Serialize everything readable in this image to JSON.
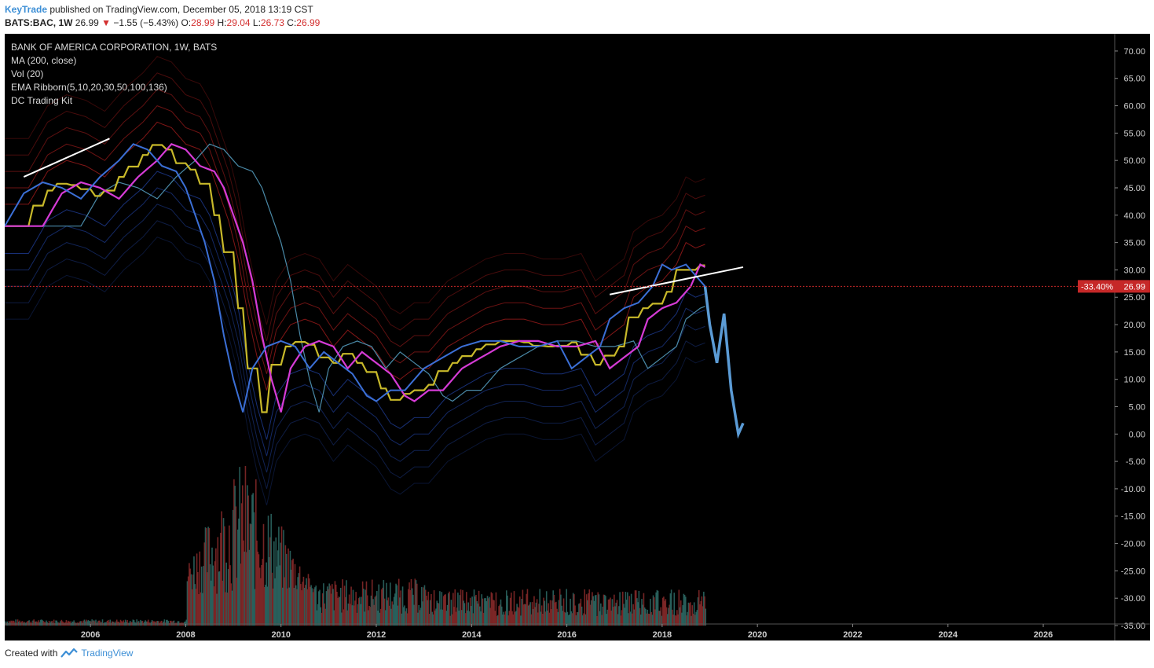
{
  "header": {
    "author": "KeyTrade",
    "published": "published on TradingView.com, December 05, 2018 13:19 CST",
    "symbol": "BATS:BAC, 1W",
    "last": "26.99",
    "change_arrow": "▼",
    "change": "−1.55 (−5.43%)",
    "open_label": "O:",
    "open": "28.99",
    "high_label": "H:",
    "high": "29.04",
    "low_label": "L:",
    "low": "26.73",
    "close_label": "C:",
    "close": "26.99"
  },
  "legend": {
    "title": "BANK OF AMERICA CORPORATION, 1W, BATS",
    "ma": "MA (200, close)",
    "vol": "Vol (20)",
    "ema": "EMA Ribborn(5,10,20,30,50,100,136)",
    "dc": "DC Trading Kit"
  },
  "price_tag": {
    "pct": "-33.40%",
    "price": "26.99"
  },
  "footer": {
    "created_with": "Created with",
    "brand": "TradingView",
    "logo_icon": "tradingview-logo-icon"
  },
  "colors": {
    "background": "#000000",
    "price_line": "#3b6fd6",
    "yellow": "#c8b92a",
    "magenta": "#d63bd6",
    "projection": "#5b9bd5",
    "trendline": "#ffffff",
    "price_tag": "#c62828"
  },
  "chart_data": {
    "type": "line",
    "title": "BANK OF AMERICA CORPORATION, 1W, BATS",
    "xlabel": "",
    "ylabel": "",
    "x_ticks": [
      "2006",
      "2008",
      "2010",
      "2012",
      "2014",
      "2016",
      "2018",
      "2020",
      "2022",
      "2024",
      "2026"
    ],
    "y_ticks": [
      "70.00",
      "65.00",
      "60.00",
      "55.00",
      "50.00",
      "45.00",
      "40.00",
      "35.00",
      "30.00",
      "25.00",
      "20.00",
      "15.00",
      "10.00",
      "5.00",
      "0.00",
      "-5.00",
      "-10.00",
      "-15.00",
      "-20.00",
      "-25.00",
      "-30.00",
      "-35.00"
    ],
    "xlim": [
      2004.2,
      2027.5
    ],
    "ylim": [
      -35,
      72
    ],
    "current_price": 26.99,
    "series": [
      {
        "x": [
          2004.2,
          2004.6,
          2005.0,
          2005.4,
          2005.8,
          2006.2,
          2006.6,
          2006.9,
          2007.2,
          2007.5,
          2007.8,
          2008.0,
          2008.2,
          2008.4,
          2008.6,
          2008.8,
          2009.0,
          2009.2,
          2009.4,
          2009.7,
          2010.0,
          2010.3,
          2010.6,
          2010.9,
          2011.2,
          2011.5,
          2011.8,
          2012.0,
          2012.3,
          2012.6,
          2013.0,
          2013.4,
          2013.8,
          2014.2,
          2014.6,
          2015.0,
          2015.4,
          2015.8,
          2016.1,
          2016.4,
          2016.7,
          2016.9,
          2017.2,
          2017.5,
          2017.8,
          2018.0,
          2018.2,
          2018.5,
          2018.7,
          2018.9
        ],
        "values": [
          38,
          44,
          46,
          45,
          43,
          47,
          50,
          53,
          52,
          49,
          48,
          45,
          40,
          35,
          28,
          18,
          10,
          4,
          12,
          16,
          17,
          16,
          12,
          15,
          13,
          11,
          7,
          6,
          8,
          8,
          12,
          14,
          16,
          17,
          17,
          16,
          16,
          17,
          12,
          14,
          16,
          21,
          23,
          24,
          27,
          31,
          30,
          31,
          29,
          27
        ]
      },
      {
        "x": [
          2018.9,
          2019.0,
          2019.15,
          2019.3,
          2019.45,
          2019.6,
          2019.7
        ],
        "values": [
          27,
          20,
          13,
          22,
          8,
          0,
          2
        ]
      }
    ],
    "trendlines": [
      {
        "x": [
          2004.6,
          2006.4
        ],
        "values": [
          47,
          54
        ]
      },
      {
        "x": [
          2016.9,
          2019.7
        ],
        "values": [
          25.5,
          30.5
        ]
      }
    ],
    "volume": {
      "x_range": [
        2004.2,
        2018.9
      ],
      "peak_year": 2009.2
    }
  }
}
